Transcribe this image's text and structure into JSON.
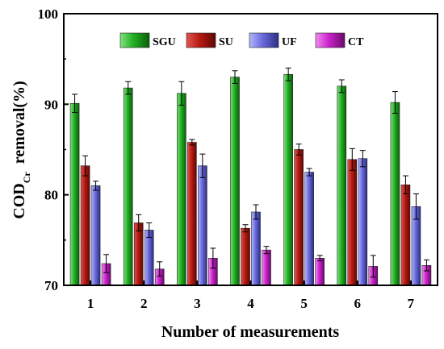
{
  "chart_data": {
    "type": "bar",
    "categories": [
      "1",
      "2",
      "3",
      "4",
      "5",
      "6",
      "7"
    ],
    "series": [
      {
        "name": "SGU",
        "color": "#22b022",
        "values": [
          90.1,
          91.8,
          91.2,
          93.0,
          93.3,
          92.0,
          90.2
        ],
        "errors": [
          1.0,
          0.7,
          1.3,
          0.7,
          0.7,
          0.7,
          1.2
        ]
      },
      {
        "name": "SU",
        "color": "#b81a12",
        "values": [
          83.2,
          76.9,
          85.8,
          76.3,
          85.0,
          83.9,
          81.1
        ],
        "errors": [
          1.1,
          0.9,
          0.3,
          0.4,
          0.6,
          1.2,
          1.0
        ]
      },
      {
        "name": "UF",
        "color": "#6a6adc",
        "values": [
          81.0,
          76.1,
          83.2,
          78.1,
          82.5,
          84.0,
          78.7
        ],
        "errors": [
          0.5,
          0.8,
          1.3,
          0.8,
          0.4,
          0.9,
          1.4
        ]
      },
      {
        "name": "CT",
        "color": "#cc22cc",
        "values": [
          72.4,
          71.8,
          73.0,
          73.9,
          73.0,
          72.1,
          72.2
        ],
        "errors": [
          1.0,
          0.8,
          1.1,
          0.4,
          0.3,
          1.2,
          0.6
        ]
      }
    ],
    "xlabel": "Number of measurements",
    "ylabel_main": "COD",
    "ylabel_sub": "Cr",
    "ylabel_tail": "removal(%)",
    "ylim": [
      70,
      100
    ],
    "yticks": [
      70,
      80,
      90,
      100
    ],
    "grid": false,
    "legend": "top"
  }
}
